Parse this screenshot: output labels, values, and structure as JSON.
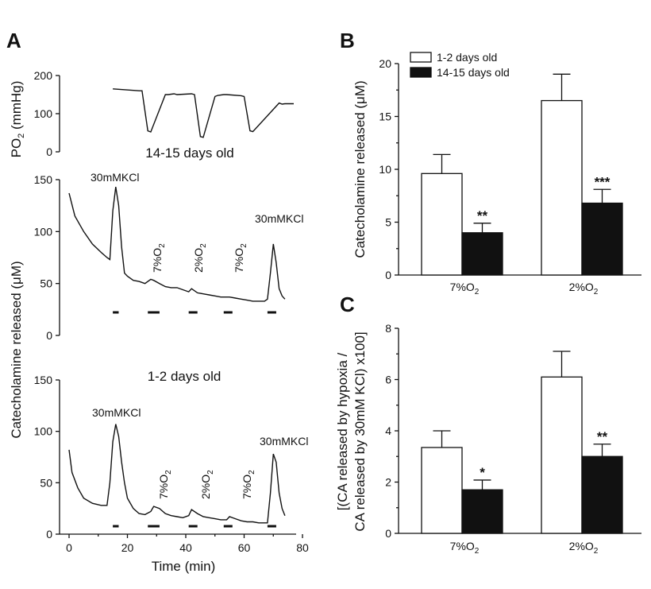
{
  "panel_labels": {
    "a": "A",
    "b": "B",
    "c": "C"
  },
  "panel_a": {
    "po2_ylabel": "PO2 (mmHg)",
    "po2_ticks": [
      0,
      100,
      200
    ],
    "top_title": "14-15 days old",
    "bottom_title": "1-2 days old",
    "shared_ylabel": "Catecholamine released (μM)",
    "top_ticks": [
      0,
      50,
      100,
      150
    ],
    "bottom_ticks": [
      0,
      50,
      100,
      150
    ],
    "xlabel": "Time (min)",
    "xticks": [
      0,
      20,
      40,
      60,
      80
    ],
    "annotations_top": [
      "30mMKCl",
      "7%O2",
      "2%O2",
      "7%O2",
      "30mMKCl"
    ],
    "annotations_bottom": [
      "30mMKCl",
      "7%O2",
      "2%O2",
      "7%O2",
      "30mMKCl"
    ]
  },
  "legend": {
    "white": "1-2 days old",
    "black": "14-15 days old"
  },
  "panel_b": {
    "ylabel": "Catecholamine released (μM)",
    "yticks": [
      0,
      5,
      10,
      15,
      20
    ],
    "categories": [
      "7%O2",
      "2%O2"
    ],
    "stars": [
      "**",
      "***"
    ]
  },
  "panel_c": {
    "ylabel_line1": "[(CA released by hypoxia /",
    "ylabel_line2": "CA released by 30mM KCl) x100]",
    "yticks": [
      0,
      2,
      4,
      6,
      8
    ],
    "categories": [
      "7%O2",
      "2%O2"
    ],
    "stars": [
      "*",
      "**"
    ]
  },
  "chart_data": [
    {
      "type": "line",
      "panel": "A-PO2",
      "ylabel": "PO2 (mmHg)",
      "ylim": [
        0,
        200
      ],
      "xlim": [
        0,
        80
      ],
      "x": [
        15,
        24,
        25,
        27,
        28,
        33,
        34,
        36,
        37,
        42,
        43,
        45,
        46,
        50,
        51,
        53,
        54,
        59,
        60,
        62,
        63,
        72,
        73,
        74,
        77
      ],
      "y": [
        165,
        160,
        160,
        55,
        52,
        150,
        150,
        152,
        150,
        152,
        150,
        40,
        38,
        145,
        148,
        150,
        150,
        147,
        145,
        55,
        53,
        128,
        125,
        126,
        126
      ]
    },
    {
      "type": "line",
      "panel": "A-top",
      "title": "14-15 days old",
      "ylabel": "Catecholamine released (μM)",
      "xlabel": "Time (min)",
      "ylim": [
        0,
        150
      ],
      "xlim": [
        0,
        80
      ],
      "x": [
        0,
        2,
        5,
        8,
        11,
        13,
        14,
        15,
        16,
        17,
        18,
        19,
        20,
        22,
        24,
        26,
        28,
        29,
        31,
        33,
        35,
        37,
        39,
        41,
        42,
        44,
        46,
        48,
        50,
        52,
        54,
        55,
        57,
        59,
        61,
        63,
        65,
        67,
        68,
        69,
        70,
        71,
        72,
        73,
        74
      ],
      "y": [
        137,
        115,
        100,
        88,
        80,
        75,
        73,
        120,
        143,
        125,
        85,
        60,
        57,
        53,
        52,
        50,
        54,
        53,
        50,
        47,
        46,
        46,
        44,
        42,
        45,
        41,
        40,
        39,
        38,
        37,
        37,
        37,
        36,
        35,
        34,
        33,
        33,
        33,
        35,
        60,
        88,
        70,
        45,
        38,
        35
      ],
      "stimuli": [
        [
          15,
          17
        ],
        [
          27,
          31
        ],
        [
          41,
          44
        ],
        [
          53,
          56
        ],
        [
          68,
          71
        ]
      ]
    },
    {
      "type": "line",
      "panel": "A-bottom",
      "title": "1-2 days old",
      "ylabel": "Catecholamine released (μM)",
      "xlabel": "Time (min)",
      "ylim": [
        0,
        150
      ],
      "xlim": [
        0,
        80
      ],
      "x": [
        0,
        1,
        3,
        5,
        8,
        11,
        13,
        14,
        15,
        16,
        17,
        18,
        19,
        20,
        22,
        24,
        26,
        28,
        29,
        31,
        33,
        35,
        37,
        39,
        41,
        42,
        44,
        46,
        48,
        50,
        52,
        54,
        55,
        57,
        59,
        61,
        63,
        65,
        67,
        68,
        69,
        70,
        71,
        72,
        73,
        74
      ],
      "y": [
        82,
        60,
        45,
        35,
        30,
        28,
        28,
        50,
        90,
        107,
        95,
        70,
        50,
        35,
        25,
        20,
        19,
        22,
        27,
        25,
        20,
        18,
        17,
        16,
        18,
        24,
        20,
        17,
        16,
        15,
        14,
        14,
        17,
        15,
        13,
        12,
        12,
        11,
        11,
        11,
        40,
        78,
        70,
        40,
        25,
        18
      ],
      "stimuli": [
        [
          15,
          17
        ],
        [
          27,
          31
        ],
        [
          41,
          44
        ],
        [
          53,
          56
        ],
        [
          68,
          71
        ]
      ]
    },
    {
      "type": "bar",
      "panel": "B",
      "categories": [
        "7%O2",
        "2%O2"
      ],
      "series": [
        {
          "name": "1-2 days old",
          "values": [
            9.6,
            16.5
          ],
          "errors": [
            1.8,
            2.5
          ]
        },
        {
          "name": "14-15 days old",
          "values": [
            4.0,
            6.8
          ],
          "errors": [
            0.9,
            1.3
          ]
        }
      ],
      "ylabel": "Catecholamine released (μM)",
      "ylim": [
        0,
        20
      ],
      "significance": [
        "**",
        "***"
      ],
      "legend": "top-left"
    },
    {
      "type": "bar",
      "panel": "C",
      "categories": [
        "7%O2",
        "2%O2"
      ],
      "series": [
        {
          "name": "1-2 days old",
          "values": [
            3.35,
            6.1
          ],
          "errors": [
            0.65,
            1.0
          ]
        },
        {
          "name": "14-15 days old",
          "values": [
            1.7,
            3.0
          ],
          "errors": [
            0.38,
            0.48
          ]
        }
      ],
      "ylabel": "[(CA released by hypoxia / CA released by 30mM KCl) x100]",
      "ylim": [
        0,
        8
      ],
      "significance": [
        "*",
        "**"
      ]
    }
  ]
}
